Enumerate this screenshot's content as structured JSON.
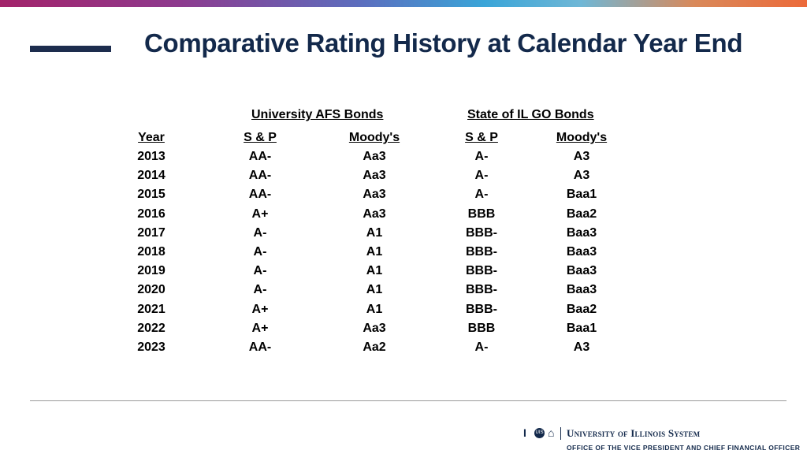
{
  "slide": {
    "title": "Comparative Rating History at Calendar Year End",
    "accent_color": "#13294b"
  },
  "table": {
    "groups": [
      "University AFS Bonds",
      "State of IL GO Bonds"
    ],
    "headers": [
      "Year",
      "S & P",
      "Moody's",
      "S & P",
      "Moody's"
    ],
    "rows": [
      [
        "2013",
        "AA-",
        "Aa3",
        "A-",
        "A3"
      ],
      [
        "2014",
        "AA-",
        "Aa3",
        "A-",
        "A3"
      ],
      [
        "2015",
        "AA-",
        "Aa3",
        "A-",
        "Baa1"
      ],
      [
        "2016",
        "A+",
        "Aa3",
        "BBB",
        "Baa2"
      ],
      [
        "2017",
        "A-",
        "A1",
        "BBB-",
        "Baa3"
      ],
      [
        "2018",
        "A-",
        "A1",
        "BBB-",
        "Baa3"
      ],
      [
        "2019",
        "A-",
        "A1",
        "BBB-",
        "Baa3"
      ],
      [
        "2020",
        "A-",
        "A1",
        "BBB-",
        "Baa3"
      ],
      [
        "2021",
        "A+",
        "A1",
        "BBB-",
        "Baa2"
      ],
      [
        "2022",
        "A+",
        "Aa3",
        "BBB",
        "Baa1"
      ],
      [
        "2023",
        "AA-",
        "Aa2",
        "A-",
        "A3"
      ]
    ]
  },
  "footer": {
    "icons": [
      "block-i-icon",
      "seal-icon",
      "dome-icon"
    ],
    "org_name": "University of Illinois System",
    "office": "OFFICE OF THE VICE PRESIDENT AND CHIEF FINANCIAL OFFICER"
  }
}
